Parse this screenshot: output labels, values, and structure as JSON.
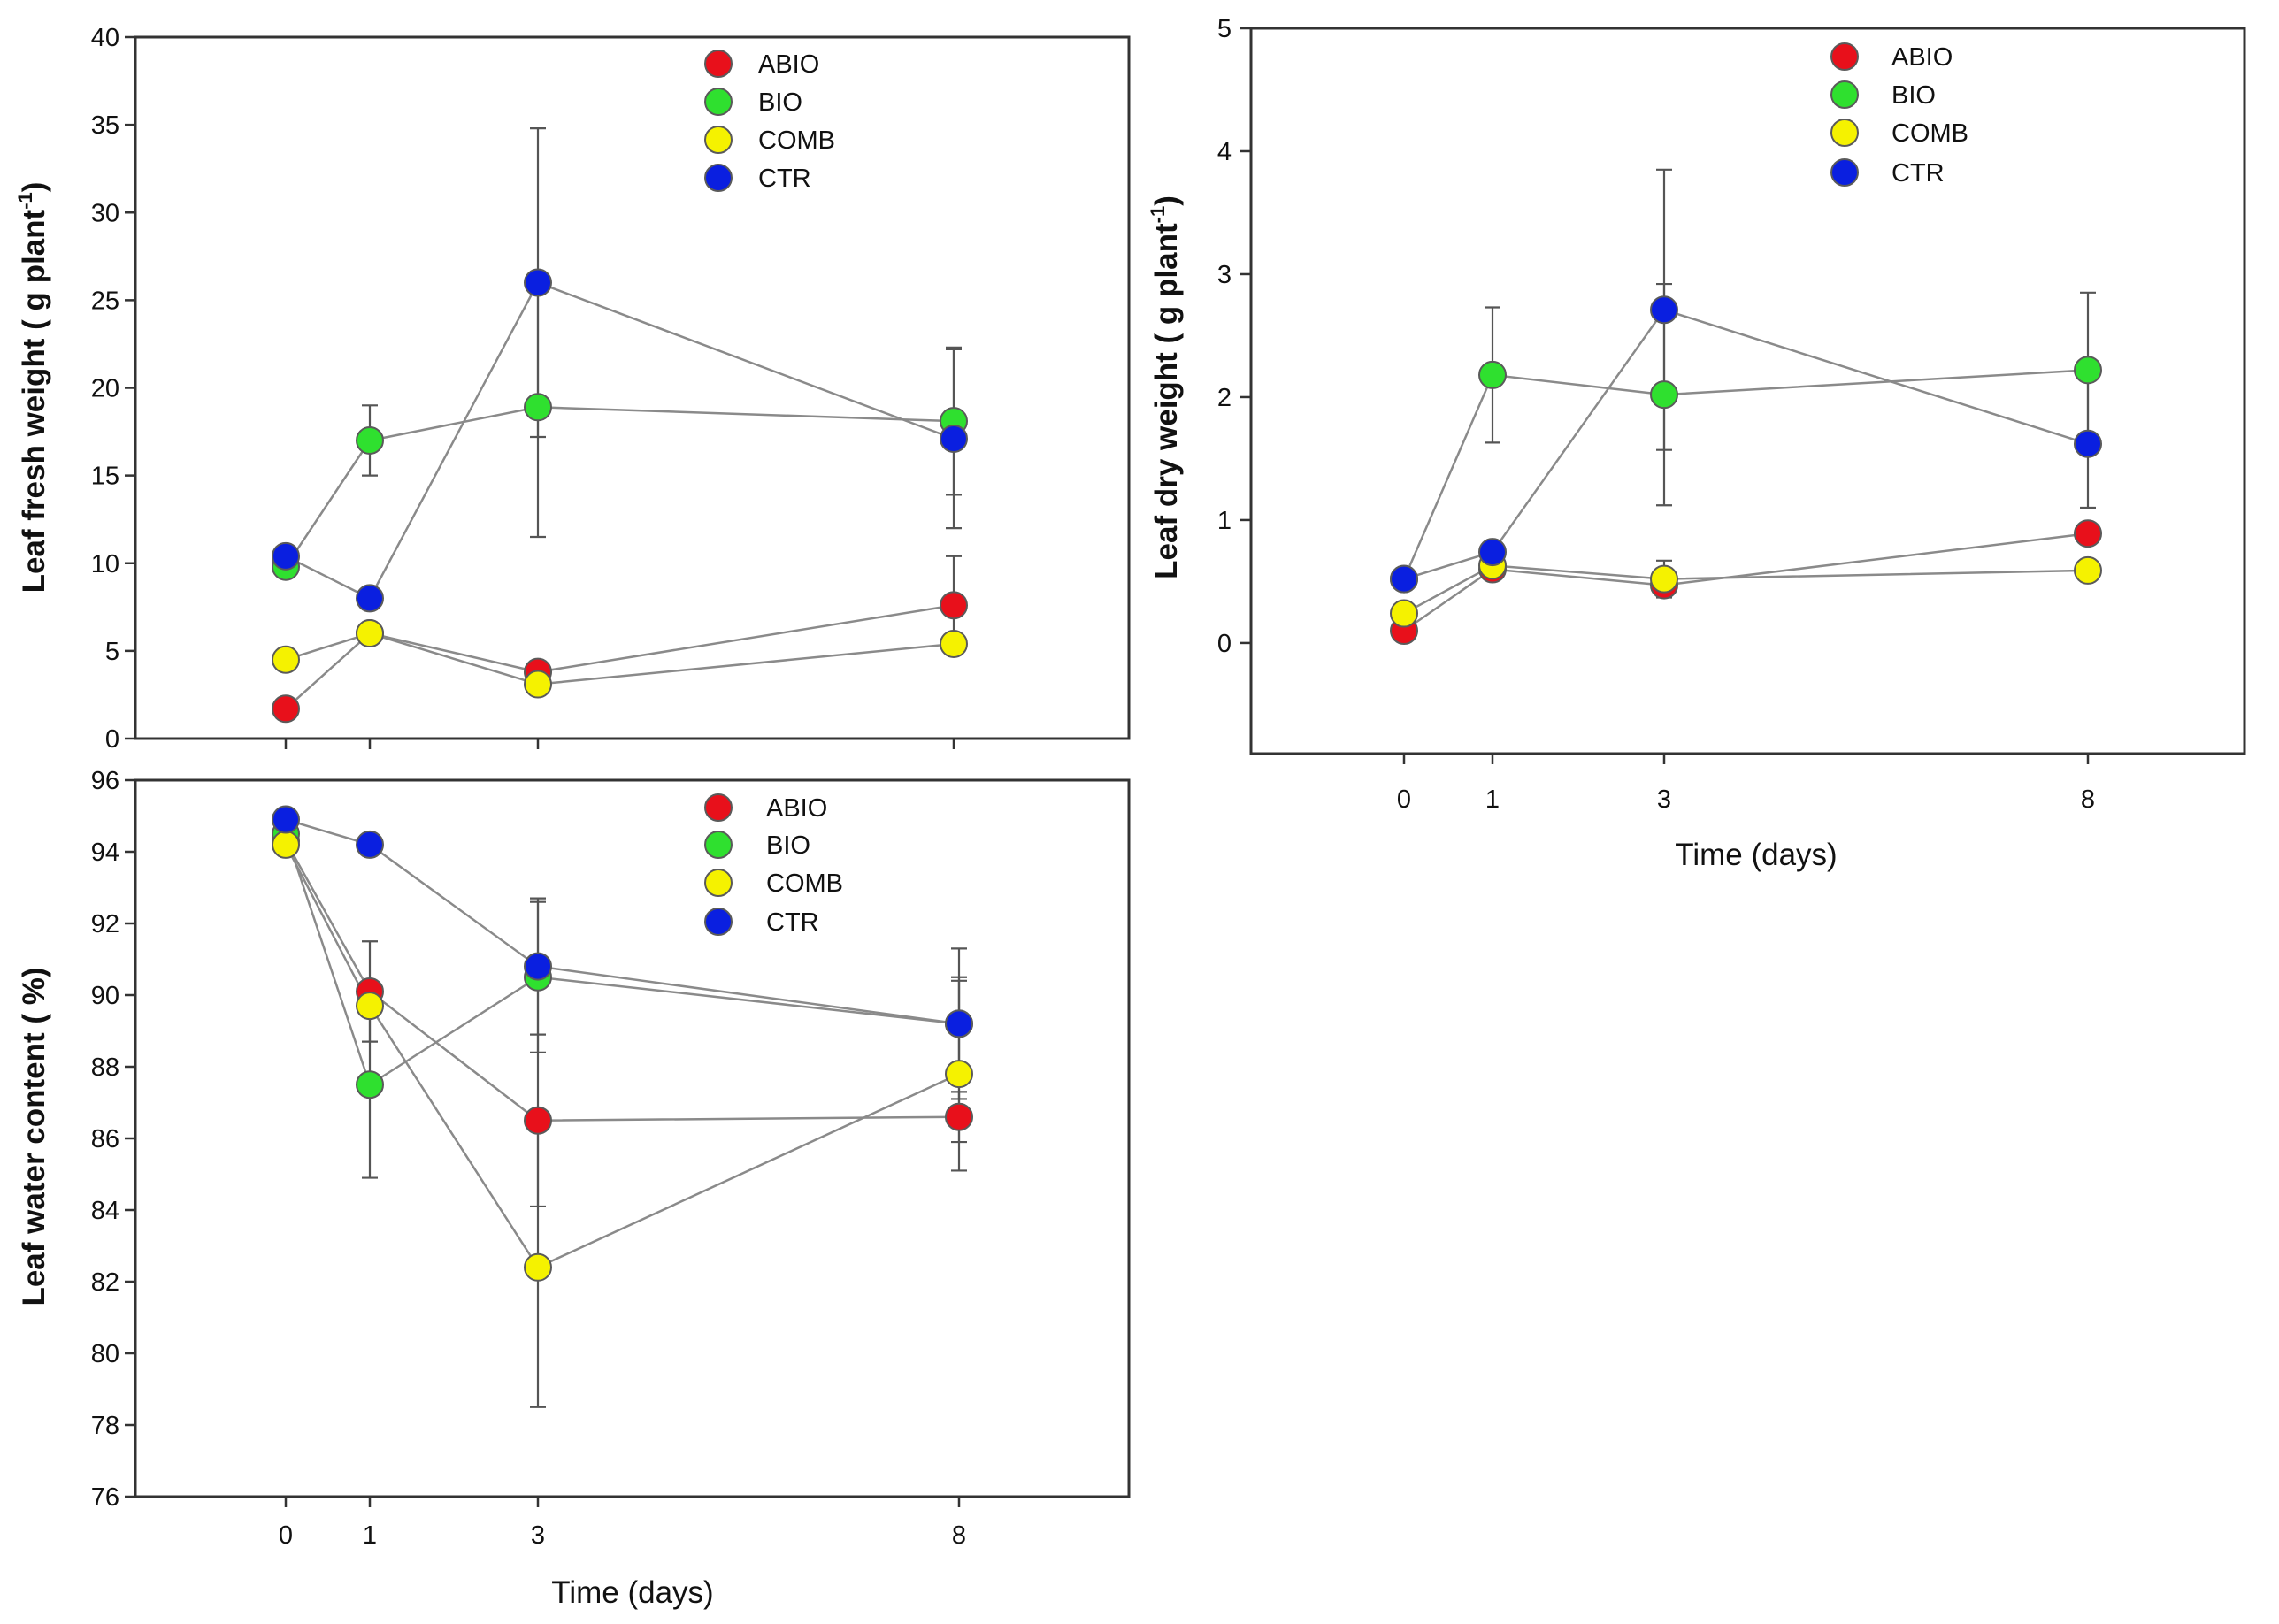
{
  "chart_data": [
    {
      "type": "line",
      "panel": "top-left",
      "ylabel": "Leaf fresh weight ( g plant",
      "ylabel_superscript": "-1",
      "ylabel_close": ")",
      "xlabel": "",
      "x": [
        0,
        1,
        3,
        8
      ],
      "x_ticks": [
        "0",
        "1",
        "3",
        "8"
      ],
      "y_ticks": [
        "0",
        "5",
        "10",
        "15",
        "20",
        "25",
        "30",
        "35",
        "40"
      ],
      "ylim": [
        0,
        40
      ],
      "legend_position": "top-center",
      "series": [
        {
          "name": "ABIO",
          "values": [
            1.7,
            6.0,
            3.8,
            7.6
          ],
          "errors": [
            0,
            0,
            0,
            2.8
          ]
        },
        {
          "name": "BIO",
          "values": [
            9.8,
            17.0,
            18.9,
            18.1
          ],
          "errors": [
            0,
            2.0,
            7.4,
            4.2
          ]
        },
        {
          "name": "COMB",
          "values": [
            4.5,
            6.0,
            3.1,
            5.4
          ],
          "errors": [
            0,
            0,
            0,
            0
          ]
        },
        {
          "name": "CTR",
          "values": [
            10.4,
            8.0,
            26.0,
            17.1
          ],
          "errors": [
            0,
            0,
            8.8,
            5.1
          ]
        }
      ]
    },
    {
      "type": "line",
      "panel": "top-right",
      "ylabel": "Leaf dry weight ( g plant",
      "ylabel_superscript": "-1",
      "ylabel_close": ")",
      "xlabel": "Time (days)",
      "x": [
        0,
        1,
        3,
        8
      ],
      "x_ticks": [
        "0",
        "1",
        "3",
        "8"
      ],
      "y_ticks": [
        "0",
        "1",
        "2",
        "3",
        "4",
        "5"
      ],
      "ylim": [
        -0.9,
        5
      ],
      "legend_position": "top-center",
      "series": [
        {
          "name": "ABIO",
          "values": [
            0.1,
            0.6,
            0.47,
            0.89
          ],
          "errors": [
            0,
            0,
            0,
            0
          ]
        },
        {
          "name": "BIO",
          "values": [
            0.52,
            2.18,
            2.02,
            2.22
          ],
          "errors": [
            0,
            0.55,
            0.9,
            0.63
          ]
        },
        {
          "name": "COMB",
          "values": [
            0.24,
            0.63,
            0.52,
            0.59
          ],
          "errors": [
            0,
            0,
            0.15,
            0
          ]
        },
        {
          "name": "CTR",
          "values": [
            0.52,
            0.74,
            2.71,
            1.62
          ],
          "errors": [
            0,
            0,
            1.14,
            0.52
          ]
        }
      ]
    },
    {
      "type": "line",
      "panel": "bottom-left",
      "ylabel": "Leaf water content ( %)",
      "xlabel": "Time (days)",
      "x": [
        0,
        1,
        3,
        8
      ],
      "x_ticks": [
        "0",
        "1",
        "3",
        "8"
      ],
      "y_ticks": [
        "76",
        "78",
        "80",
        "82",
        "84",
        "86",
        "88",
        "90",
        "92",
        "94",
        "96"
      ],
      "ylim": [
        76,
        96
      ],
      "legend_position": "top-center",
      "series": [
        {
          "name": "ABIO",
          "values": [
            94.3,
            90.1,
            86.5,
            86.6
          ],
          "errors": [
            0,
            1.4,
            2.4,
            0.7
          ]
        },
        {
          "name": "BIO",
          "values": [
            94.5,
            87.5,
            90.5,
            89.2
          ],
          "errors": [
            0,
            2.6,
            2.1,
            1.2
          ]
        },
        {
          "name": "COMB",
          "values": [
            94.2,
            89.7,
            82.4,
            87.8
          ],
          "errors": [
            0,
            0,
            3.9,
            2.7
          ]
        },
        {
          "name": "CTR",
          "values": [
            94.9,
            94.2,
            90.8,
            89.2
          ],
          "errors": [
            0,
            0,
            1.9,
            2.1
          ]
        }
      ]
    }
  ],
  "colors": {
    "ABIO": "#e8101b",
    "BIO": "#2fe02f",
    "COMB": "#f5f200",
    "CTR": "#0a1fe0",
    "line": "#8a8a8a",
    "errorbar": "#555555",
    "frame": "#333333"
  }
}
